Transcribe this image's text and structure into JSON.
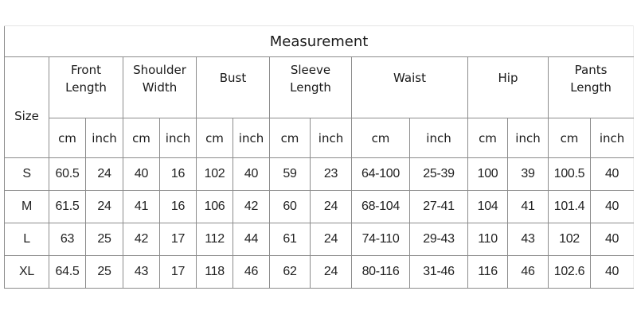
{
  "title": "Measurement",
  "size_label": "Size",
  "groups": [
    {
      "line1": "Front",
      "line2": "Length"
    },
    {
      "line1": "Shoulder",
      "line2": "Width"
    },
    {
      "line1": "Bust",
      "line2": ""
    },
    {
      "line1": "Sleeve",
      "line2": "Length"
    },
    {
      "line1": "Waist",
      "line2": ""
    },
    {
      "line1": "Hip",
      "line2": ""
    },
    {
      "line1": "Pants",
      "line2": "Length"
    }
  ],
  "units": {
    "cm": "cm",
    "inch": "inch"
  },
  "rows": [
    {
      "size": "S",
      "values": [
        "60.5",
        "24",
        "40",
        "16",
        "102",
        "40",
        "59",
        "23",
        "64-100",
        "25-39",
        "100",
        "39",
        "100.5",
        "40"
      ]
    },
    {
      "size": "M",
      "values": [
        "61.5",
        "24",
        "41",
        "16",
        "106",
        "42",
        "60",
        "24",
        "68-104",
        "27-41",
        "104",
        "41",
        "101.4",
        "40"
      ]
    },
    {
      "size": "L",
      "values": [
        "63",
        "25",
        "42",
        "17",
        "112",
        "44",
        "61",
        "24",
        "74-110",
        "29-43",
        "110",
        "43",
        "102",
        "40"
      ]
    },
    {
      "size": "XL",
      "values": [
        "64.5",
        "25",
        "43",
        "17",
        "118",
        "46",
        "62",
        "24",
        "80-116",
        "31-46",
        "116",
        "46",
        "102.6",
        "40"
      ]
    }
  ]
}
